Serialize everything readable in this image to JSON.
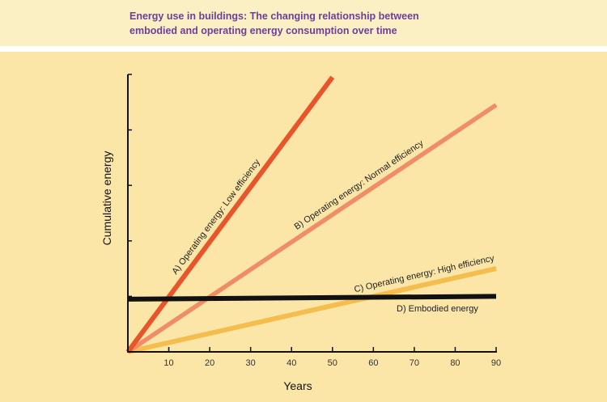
{
  "header": {
    "title_line1": "Energy use in buildings: The changing relationship between",
    "title_line2": "embodied and operating energy consumption over time"
  },
  "colors": {
    "title_band": "#fbefc4",
    "plot_background": "#fbe6a8",
    "title_text": "#6e3f98",
    "series_a": "#e8552a",
    "series_b": "#f08c66",
    "series_c": "#f4bd4e",
    "series_d": "#111111"
  },
  "chart_data": {
    "type": "line",
    "title": "Energy use in buildings: The changing relationship between embodied and operating energy consumption over time",
    "xlabel": "Years",
    "ylabel": "Cumulative energy",
    "xlim": [
      0,
      90
    ],
    "ylim": [
      0,
      100
    ],
    "x_ticks": [
      "10",
      "20",
      "30",
      "40",
      "50",
      "60",
      "70",
      "80",
      "90"
    ],
    "y_ticks": [
      20,
      40,
      60,
      80,
      100
    ],
    "y_tick_labels_shown": false,
    "grid": false,
    "series": [
      {
        "name": "A) Operating energy: Low efficiency",
        "color": "#e8552a",
        "x": [
          0,
          50
        ],
        "y": [
          0,
          99
        ]
      },
      {
        "name": "B) Operating energy: Normal efficiency",
        "color": "#f08c66",
        "x": [
          0,
          90
        ],
        "y": [
          0,
          89
        ]
      },
      {
        "name": "C) Operating energy: High efficiency",
        "color": "#f4bd4e",
        "x": [
          0,
          90
        ],
        "y": [
          0,
          30
        ]
      },
      {
        "name": "D) Embodied energy",
        "color": "#111111",
        "x": [
          0,
          90
        ],
        "y": [
          19,
          20
        ]
      }
    ]
  }
}
